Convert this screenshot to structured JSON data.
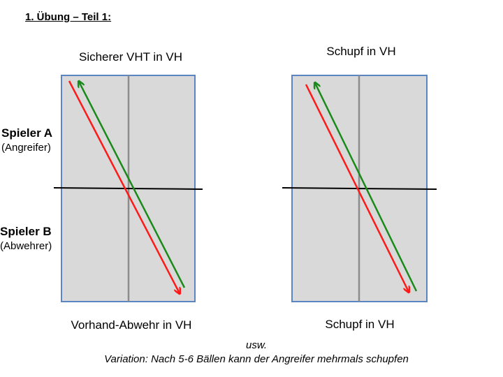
{
  "heading": "1. Übung – Teil 1:",
  "diagrams": [
    {
      "top_label": "Sicherer VHT in VH",
      "bottom_label": "Vorhand-Abwehr in VH"
    },
    {
      "top_label": "Schupf in VH",
      "bottom_label": "Schupf in VH"
    }
  ],
  "players": {
    "a": {
      "name": "Spieler A",
      "role": "(Angreifer)"
    },
    "b": {
      "name": "Spieler B",
      "role": "(Abwehrer)"
    }
  },
  "footer": {
    "line1": "usw.",
    "line2": "Variation: Nach 5-6 Bällen kann der Angreifer mehrmals schupfen"
  },
  "colors": {
    "table_fill": "#d9d9d9",
    "table_border": "#5b84c2",
    "center_line": "#8c8c8c",
    "net": "#000000",
    "arrow_red": "#ff1a1a",
    "arrow_green": "#1a8a1a"
  }
}
